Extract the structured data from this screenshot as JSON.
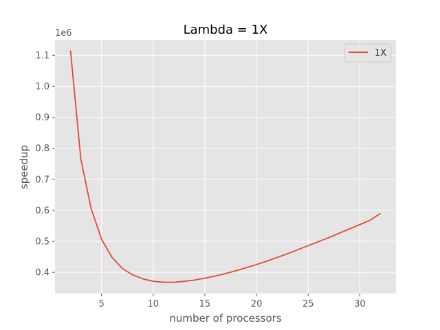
{
  "chart_data": {
    "type": "line",
    "title": "Lambda = 1X",
    "xlabel": "number of processors",
    "ylabel": "speedup",
    "offset_text": "1e6",
    "xlim": [
      0.5,
      33.5
    ],
    "ylim": [
      0.3315,
      1.1495
    ],
    "x_ticks": [
      5,
      10,
      15,
      20,
      25,
      30
    ],
    "y_ticks": [
      0.4,
      0.5,
      0.6,
      0.7,
      0.8,
      0.9,
      1.0,
      1.1
    ],
    "grid": true,
    "legend_position": "top-right",
    "series": [
      {
        "name": "1X",
        "color": "#e24a33",
        "x": [
          2,
          3,
          4,
          5,
          6,
          7,
          8,
          9,
          10,
          11,
          12,
          13,
          14,
          15,
          16,
          17,
          18,
          19,
          20,
          21,
          22,
          23,
          24,
          25,
          26,
          27,
          28,
          29,
          30,
          31,
          32
        ],
        "y": [
          1.115,
          0.765,
          0.605,
          0.507,
          0.449,
          0.413,
          0.392,
          0.379,
          0.371,
          0.368,
          0.368,
          0.371,
          0.375,
          0.381,
          0.388,
          0.396,
          0.405,
          0.415,
          0.425,
          0.436,
          0.448,
          0.46,
          0.473,
          0.486,
          0.499,
          0.512,
          0.526,
          0.54,
          0.554,
          0.568,
          0.59
        ]
      }
    ]
  }
}
